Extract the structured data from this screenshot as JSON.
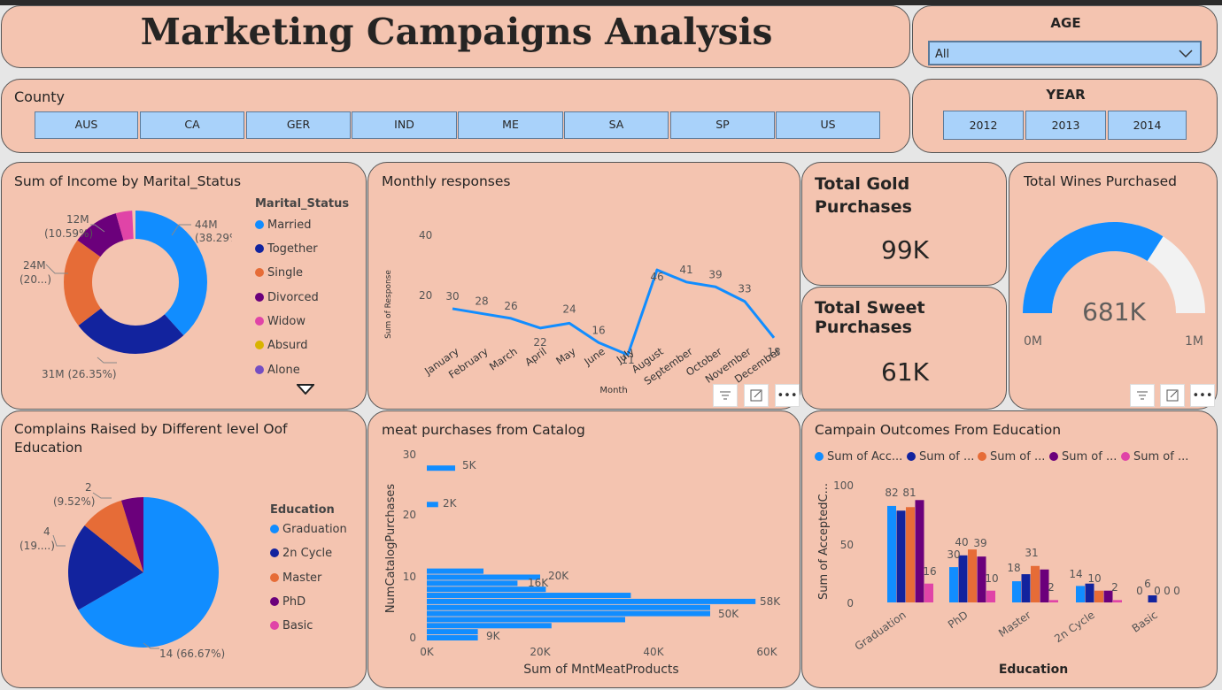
{
  "header": {
    "title": "Marketing Campaigns Analysis"
  },
  "age_filter": {
    "label": "AGE",
    "selected": "All"
  },
  "county_filter": {
    "label": "County",
    "options": [
      "AUS",
      "CA",
      "GER",
      "IND",
      "ME",
      "SA",
      "SP",
      "US"
    ]
  },
  "year_filter": {
    "label": "YEAR",
    "options": [
      "2012",
      "2013",
      "2014"
    ]
  },
  "income_marital": {
    "title": "Sum of Income by Marital_Status",
    "legend_title": "Marital_Status",
    "legend": [
      {
        "label": "Married",
        "color": "#118dff"
      },
      {
        "label": "Together",
        "color": "#12239e"
      },
      {
        "label": "Single",
        "color": "#e66c37"
      },
      {
        "label": "Divorced",
        "color": "#6b007b"
      },
      {
        "label": "Widow",
        "color": "#e044a7"
      },
      {
        "label": "Absurd",
        "color": "#d9b300"
      },
      {
        "label": "Alone",
        "color": "#744ec2"
      }
    ],
    "labels": {
      "married": [
        "44M",
        "(38.29%)"
      ],
      "together": [
        "31M (26.35%)"
      ],
      "single": [
        "24M",
        "(20...)"
      ],
      "divorced": [
        "12M",
        "(10.59%)"
      ]
    }
  },
  "monthly_responses": {
    "title": "Monthly responses",
    "ylabel": "Sum of Response",
    "xlabel": "Month",
    "yticks": [
      "40",
      "20"
    ],
    "months": [
      "January",
      "February",
      "March",
      "April",
      "May",
      "June",
      "July",
      "August",
      "September",
      "October",
      "November",
      "December"
    ],
    "values": [
      30,
      28,
      26,
      22,
      24,
      16,
      11,
      46,
      41,
      39,
      33,
      18
    ],
    "value_labels": [
      "30",
      "28",
      "26",
      "22",
      "24",
      "16",
      "11",
      "46",
      "41",
      "39",
      "33",
      "18"
    ]
  },
  "kpi_gold": {
    "title_line1": "Total Gold",
    "title_line2": "Purchases",
    "value": "99K"
  },
  "kpi_sweet": {
    "title_line1": "Total Sweet",
    "title_line2": "Purchases",
    "value": "61K"
  },
  "wines": {
    "title": "Total Wines Purchased",
    "value": "681K",
    "min": "0M",
    "max": "1M",
    "fraction": 0.681
  },
  "complains_education": {
    "title_line1": "Complains Raised by Different level Oof",
    "title_line2": "Education",
    "legend_title": "Education",
    "legend": [
      {
        "label": "Graduation",
        "color": "#118dff"
      },
      {
        "label": "2n Cycle",
        "color": "#12239e"
      },
      {
        "label": "Master",
        "color": "#e66c37"
      },
      {
        "label": "PhD",
        "color": "#6b007b"
      },
      {
        "label": "Basic",
        "color": "#e044a7"
      }
    ],
    "labels": {
      "graduation": "14 (66.67%)",
      "cycle": [
        "4",
        "(19....)"
      ],
      "master": [
        "2",
        "(9.52%)"
      ]
    }
  },
  "meat_catalog": {
    "title": "meat purchases from Catalog",
    "xlabel": "Sum of MntMeatProducts",
    "ylabel": "NumCatalogPurchases",
    "xticks": [
      "0K",
      "20K",
      "40K",
      "60K"
    ],
    "yticks": [
      "30",
      "20",
      "10",
      "0"
    ],
    "value_labels": [
      "5K",
      "2K",
      "20K",
      "16K",
      "58K",
      "50K",
      "9K"
    ]
  },
  "campaign_outcomes": {
    "title": "Campain Outcomes From Education",
    "legend": [
      {
        "label": "Sum of Acc...",
        "color": "#118dff"
      },
      {
        "label": "Sum of ...",
        "color": "#12239e"
      },
      {
        "label": "Sum of ...",
        "color": "#e66c37"
      },
      {
        "label": "Sum of ...",
        "color": "#6b007b"
      },
      {
        "label": "Sum of ...",
        "color": "#e044a7"
      }
    ],
    "ylabel": "Sum of AcceptedC...",
    "xlabel": "Education",
    "yticks": [
      "100",
      "50",
      "0"
    ],
    "categories": [
      "Graduation",
      "PhD",
      "Master",
      "2n Cycle",
      "Basic"
    ]
  },
  "chart_data": [
    {
      "type": "pie",
      "title": "Sum of Income by Marital_Status",
      "categories": [
        "Married",
        "Together",
        "Single",
        "Divorced",
        "Widow",
        "Absurd",
        "Alone"
      ],
      "values": [
        44,
        31,
        24,
        12,
        2.5,
        0.1,
        0.1
      ],
      "units": "M",
      "percent": [
        38.29,
        26.35,
        20.3,
        10.59,
        2.2,
        0.1,
        0.1
      ]
    },
    {
      "type": "line",
      "title": "Monthly responses",
      "xlabel": "Month",
      "ylabel": "Sum of Response",
      "categories": [
        "January",
        "February",
        "March",
        "April",
        "May",
        "June",
        "July",
        "August",
        "September",
        "October",
        "November",
        "December"
      ],
      "values": [
        30,
        28,
        26,
        22,
        24,
        16,
        11,
        46,
        41,
        39,
        33,
        18
      ]
    },
    {
      "type": "pie",
      "title": "Complains Raised by Different level Oof Education",
      "categories": [
        "Graduation",
        "2n Cycle",
        "Master",
        "PhD",
        "Basic"
      ],
      "values": [
        14,
        4,
        2,
        1,
        0
      ],
      "percent": [
        66.67,
        19.05,
        9.52,
        4.76,
        0
      ]
    },
    {
      "type": "bar",
      "orientation": "horizontal",
      "title": "meat purchases from Catalog",
      "xlabel": "Sum of MntMeatProducts",
      "ylabel": "NumCatalogPurchases",
      "y": [
        28,
        22,
        11,
        10,
        9,
        8,
        7,
        6,
        5,
        4,
        3,
        2,
        1,
        0
      ],
      "values": [
        5,
        2,
        10,
        20,
        16,
        21,
        36,
        58,
        50,
        50,
        35,
        22,
        9,
        9
      ],
      "units": "K",
      "xlim": [
        0,
        60
      ],
      "ylim": [
        0,
        30
      ]
    },
    {
      "type": "bar",
      "title": "Campain Outcomes From Education",
      "xlabel": "Education",
      "ylabel": "Sum of AcceptedC...",
      "categories": [
        "Graduation",
        "PhD",
        "Master",
        "2n Cycle",
        "Basic"
      ],
      "ylim": [
        0,
        100
      ],
      "series": [
        {
          "values": [
            82,
            30,
            18,
            14,
            0
          ]
        },
        {
          "values": [
            78,
            40,
            24,
            16,
            6
          ]
        },
        {
          "values": [
            81,
            45,
            31,
            10,
            0
          ]
        },
        {
          "values": [
            87,
            39,
            28,
            10,
            0
          ]
        },
        {
          "values": [
            16,
            10,
            2,
            2,
            0
          ]
        }
      ],
      "value_labels": [
        "82",
        "81",
        "16",
        "30",
        "40",
        "39",
        "10",
        "18",
        "31",
        "2",
        "14",
        "10",
        "2",
        "0",
        "6",
        "0",
        "0",
        "0"
      ]
    }
  ]
}
